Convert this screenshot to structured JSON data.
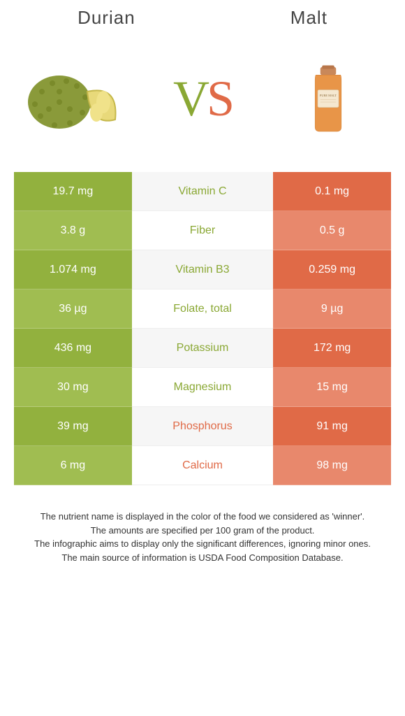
{
  "header": {
    "left_title": "Durian",
    "right_title": "Malt"
  },
  "vs_text": {
    "v": "V",
    "s": "S"
  },
  "colors": {
    "left_winner": "#8aa834",
    "right_winner": "#e06a47",
    "left_bg_dark": "#92b13e",
    "left_bg_light": "#a0bd51",
    "right_bg_dark": "#e06a47",
    "right_bg_light": "#e8886c"
  },
  "rows": [
    {
      "left": "19.7 mg",
      "label": "Vitamin C",
      "right": "0.1 mg",
      "winner": "left"
    },
    {
      "left": "3.8 g",
      "label": "Fiber",
      "right": "0.5 g",
      "winner": "left"
    },
    {
      "left": "1.074 mg",
      "label": "Vitamin B3",
      "right": "0.259 mg",
      "winner": "left"
    },
    {
      "left": "36 µg",
      "label": "Folate, total",
      "right": "9 µg",
      "winner": "left"
    },
    {
      "left": "436 mg",
      "label": "Potassium",
      "right": "172 mg",
      "winner": "left"
    },
    {
      "left": "30 mg",
      "label": "Magnesium",
      "right": "15 mg",
      "winner": "left"
    },
    {
      "left": "39 mg",
      "label": "Phosphorus",
      "right": "91 mg",
      "winner": "right"
    },
    {
      "left": "6 mg",
      "label": "Calcium",
      "right": "98 mg",
      "winner": "right"
    }
  ],
  "footer": {
    "line1": "The nutrient name is displayed in the color of the food we considered as 'winner'.",
    "line2": "The amounts are specified per 100 gram of the product.",
    "line3": "The infographic aims to display only the significant differences, ignoring minor ones.",
    "line4": "The main source of information is USDA Food Composition Database."
  }
}
